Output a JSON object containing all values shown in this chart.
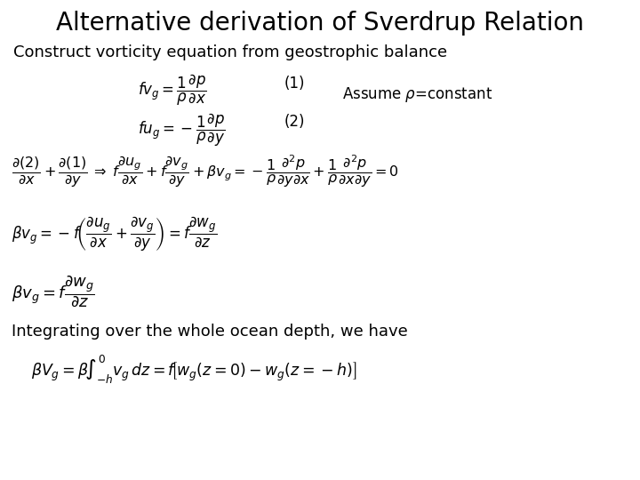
{
  "title": "Alternative derivation of Sverdrup Relation",
  "title_fontsize": 20,
  "bg_color": "#ffffff",
  "text_color": "#000000",
  "subtitle": "Construct vorticity equation from geostrophic balance",
  "subtitle_fontsize": 13,
  "text2": "Integrating over the whole ocean depth, we have",
  "text2_fontsize": 13
}
